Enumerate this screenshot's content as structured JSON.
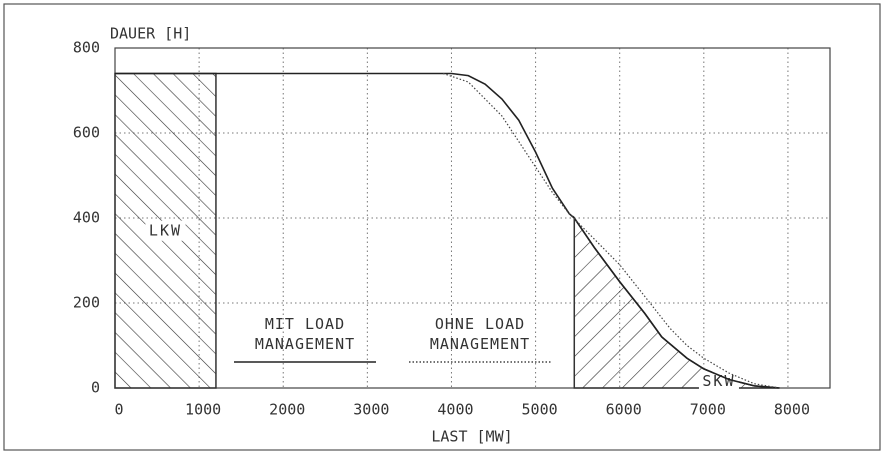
{
  "chart_data": {
    "type": "line",
    "y_label": "DAUER [H]",
    "x_label": "LAST [MW]",
    "xlim": [
      0,
      8500
    ],
    "ylim": [
      0,
      800
    ],
    "xticks": [
      0,
      1000,
      2000,
      3000,
      4000,
      5000,
      6000,
      7000,
      8000
    ],
    "yticks": [
      0,
      200,
      400,
      600,
      800
    ],
    "grid": true,
    "series": [
      {
        "name": "MIT LOAD MANAGEMENT",
        "color": "#222222",
        "style": "solid",
        "x": [
          0,
          4000,
          4200,
          4400,
          4600,
          4800,
          5000,
          5200,
          5400,
          5460,
          5700,
          6000,
          6300,
          6500,
          6800,
          7000,
          7300,
          7600,
          7900
        ],
        "values": [
          740,
          740,
          735,
          715,
          680,
          630,
          555,
          470,
          410,
          400,
          330,
          250,
          175,
          120,
          70,
          45,
          20,
          5,
          0
        ]
      },
      {
        "name": "OHNE LOAD MANAGEMENT",
        "color": "#444444",
        "style": "dotted",
        "x": [
          3900,
          4200,
          4400,
          4600,
          4800,
          5000,
          5200,
          5400,
          5600,
          5800,
          6000,
          6200,
          6400,
          6600,
          6800,
          7000,
          7300,
          7600,
          7900
        ],
        "values": [
          740,
          720,
          680,
          640,
          580,
          520,
          460,
          410,
          370,
          330,
          290,
          240,
          190,
          140,
          100,
          70,
          35,
          10,
          0
        ]
      }
    ],
    "regions": [
      {
        "label": "LKW",
        "from": 0,
        "to": 1200,
        "hatch": "back"
      },
      {
        "label": "SKW",
        "from": 5460,
        "to": 7900,
        "hatch": "forward"
      }
    ]
  }
}
